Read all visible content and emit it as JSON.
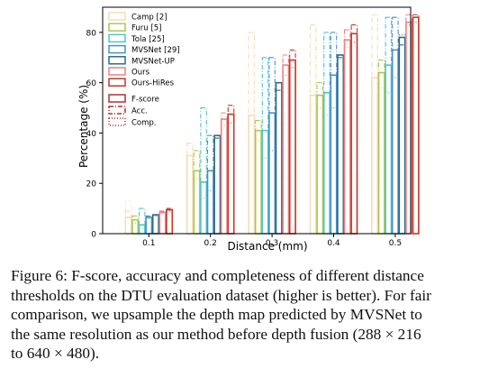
{
  "chart_data": {
    "type": "bar",
    "ylabel": "Percentage (%)",
    "xlabel": "Distance (mm)",
    "x": [
      0.1,
      0.2,
      0.3,
      0.4,
      0.5
    ],
    "xticks": [
      "0.1",
      "0.2",
      "0.3",
      "0.4",
      "0.5"
    ],
    "ylim": [
      0,
      90
    ],
    "yticks": [
      0,
      20,
      40,
      60,
      80
    ],
    "grid": false,
    "legend_placement": "top-left",
    "series": [
      {
        "name": "Camp [2]",
        "color": "#f5dcb5",
        "fscore": [
          6.5,
          31,
          47,
          55,
          62
        ],
        "acc": [
          9,
          36,
          80,
          83,
          87
        ],
        "comp": [
          13,
          35,
          43,
          51,
          56
        ]
      },
      {
        "name": "Furu [5]",
        "color": "#a9c94c",
        "fscore": [
          5.5,
          25,
          41,
          55,
          64
        ],
        "acc": [
          7,
          33,
          45,
          60,
          69
        ],
        "comp": [
          4,
          22,
          37,
          50,
          58
        ]
      },
      {
        "name": "Tola [25]",
        "color": "#4fc4cf",
        "fscore": [
          3.5,
          20.5,
          41,
          56,
          67
        ],
        "acc": [
          10,
          50,
          70,
          80,
          86
        ],
        "comp": [
          2,
          14,
          30,
          47,
          56
        ]
      },
      {
        "name": "MVSNet [29]",
        "color": "#4a90c8",
        "fscore": [
          6.5,
          25,
          48,
          63,
          73
        ],
        "acc": [
          7,
          39,
          70,
          80,
          86
        ],
        "comp": [
          6,
          17,
          33,
          50,
          62
        ]
      },
      {
        "name": "MVSNet-UP",
        "color": "#2d6b86",
        "fscore": [
          7.5,
          39,
          60,
          71,
          78
        ],
        "acc": [
          7.5,
          38,
          57,
          70,
          75
        ],
        "comp": [
          7,
          38,
          60,
          71,
          79
        ]
      },
      {
        "name": "Ours",
        "color": "#f08080",
        "fscore": [
          8.5,
          45.5,
          67,
          77,
          84
        ],
        "acc": [
          9,
          48,
          71,
          81,
          87
        ],
        "comp": [
          8,
          43,
          63,
          74,
          83
        ]
      },
      {
        "name": "Ours-HiRes",
        "color": "#c0392b",
        "fscore": [
          9.5,
          47.5,
          69,
          79.5,
          86
        ],
        "acc": [
          10,
          51,
          73,
          83,
          87
        ],
        "comp": [
          9,
          44,
          66,
          76,
          84
        ]
      }
    ],
    "metric_legend": [
      {
        "name": "F-score",
        "style": "solid"
      },
      {
        "name": "Acc.",
        "style": "dashdot"
      },
      {
        "name": "Comp.",
        "style": "dotted"
      }
    ]
  },
  "caption": {
    "lines": [
      "Figure 6: F-score, accuracy and completeness of different distance",
      "thresholds on the DTU evaluation dataset (higher is better). For fair",
      "comparison, we upsample the depth map predicted by MVSNet to",
      "the same resolution as our method before depth fusion (288 × 216",
      "to 640 × 480)."
    ]
  }
}
